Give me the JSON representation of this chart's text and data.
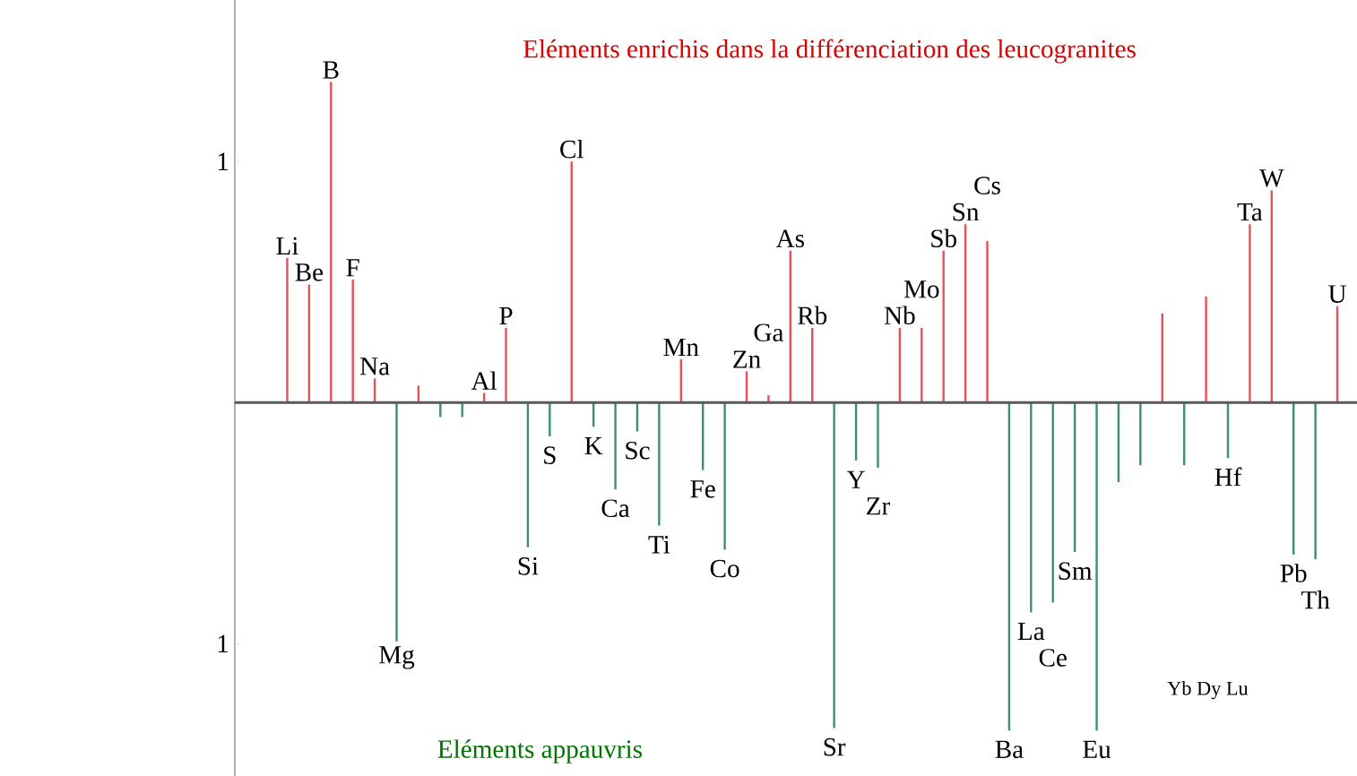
{
  "chart_data": {
    "type": "bar",
    "title": "Eléments enrichis dans la différenciation des leucogranites",
    "categories": [
      "Li",
      "Be",
      "B",
      "F",
      "Na",
      "Mg",
      null,
      null,
      null,
      "Al",
      "P",
      "Si",
      "S",
      "Cl",
      "K",
      "Ca",
      "Sc",
      "Ti",
      "Mn",
      "Fe",
      "Co",
      "Zn",
      "Ga",
      "As",
      "Rb",
      "Sr",
      "Y",
      "Zr",
      "Nb",
      "Mo",
      "Sb",
      "Sn",
      "Cs",
      "Ba",
      "La",
      "Ce",
      "Sm",
      "Eu",
      null,
      null,
      null,
      null,
      null,
      "Hf",
      "Ta",
      "W",
      "Pb",
      "Th",
      "U"
    ],
    "values": [
      0.6,
      0.49,
      1.33,
      0.51,
      0.1,
      -0.99,
      0.07,
      -0.06,
      -0.06,
      0.04,
      0.31,
      -0.6,
      -0.14,
      1.0,
      -0.1,
      -0.36,
      -0.12,
      -0.51,
      0.18,
      -0.28,
      -0.61,
      0.13,
      0.03,
      0.63,
      0.31,
      -1.35,
      -0.24,
      -0.27,
      0.31,
      0.31,
      0.63,
      0.74,
      0.67,
      -1.36,
      -0.87,
      -0.83,
      -0.62,
      -1.36,
      -0.33,
      -0.26,
      0.37,
      -0.26,
      0.44,
      -0.23,
      0.74,
      0.88,
      -0.63,
      -0.65,
      0.4
    ],
    "colors": [
      "#e8505b",
      "#e8505b",
      "#e8505b",
      "#e8505b",
      "#e8505b",
      "#3d8f6f",
      "#e8505b",
      "#3d8f6f",
      "#3d8f6f",
      "#e8505b",
      "#e8505b",
      "#3d8f6f",
      "#3d8f6f",
      "#e8505b",
      "#3d8f6f",
      "#3d8f6f",
      "#3d8f6f",
      "#3d8f6f",
      "#e8505b",
      "#3d8f6f",
      "#3d8f6f",
      "#e8505b",
      "#e8505b",
      "#e8505b",
      "#e8505b",
      "#3d8f6f",
      "#3d8f6f",
      "#3d8f6f",
      "#e8505b",
      "#e8505b",
      "#e8505b",
      "#e8505b",
      "#e8505b",
      "#3d8f6f",
      "#3d8f6f",
      "#3d8f6f",
      "#3d8f6f",
      "#3d8f6f",
      "#3d8f6f",
      "#3d8f6f",
      "#e8505b",
      "#3d8f6f",
      "#e8505b",
      "#3d8f6f",
      "#e8505b",
      "#e8505b",
      "#3d8f6f",
      "#3d8f6f",
      "#e8505b"
    ],
    "ylim": [
      -1.55,
      1.67
    ],
    "yticks": [
      {
        "value": 1,
        "label": "1"
      },
      {
        "value": -1,
        "label": "1"
      }
    ],
    "annotations": [
      "Eléments appauvris",
      "Yb Dy Lu"
    ]
  }
}
